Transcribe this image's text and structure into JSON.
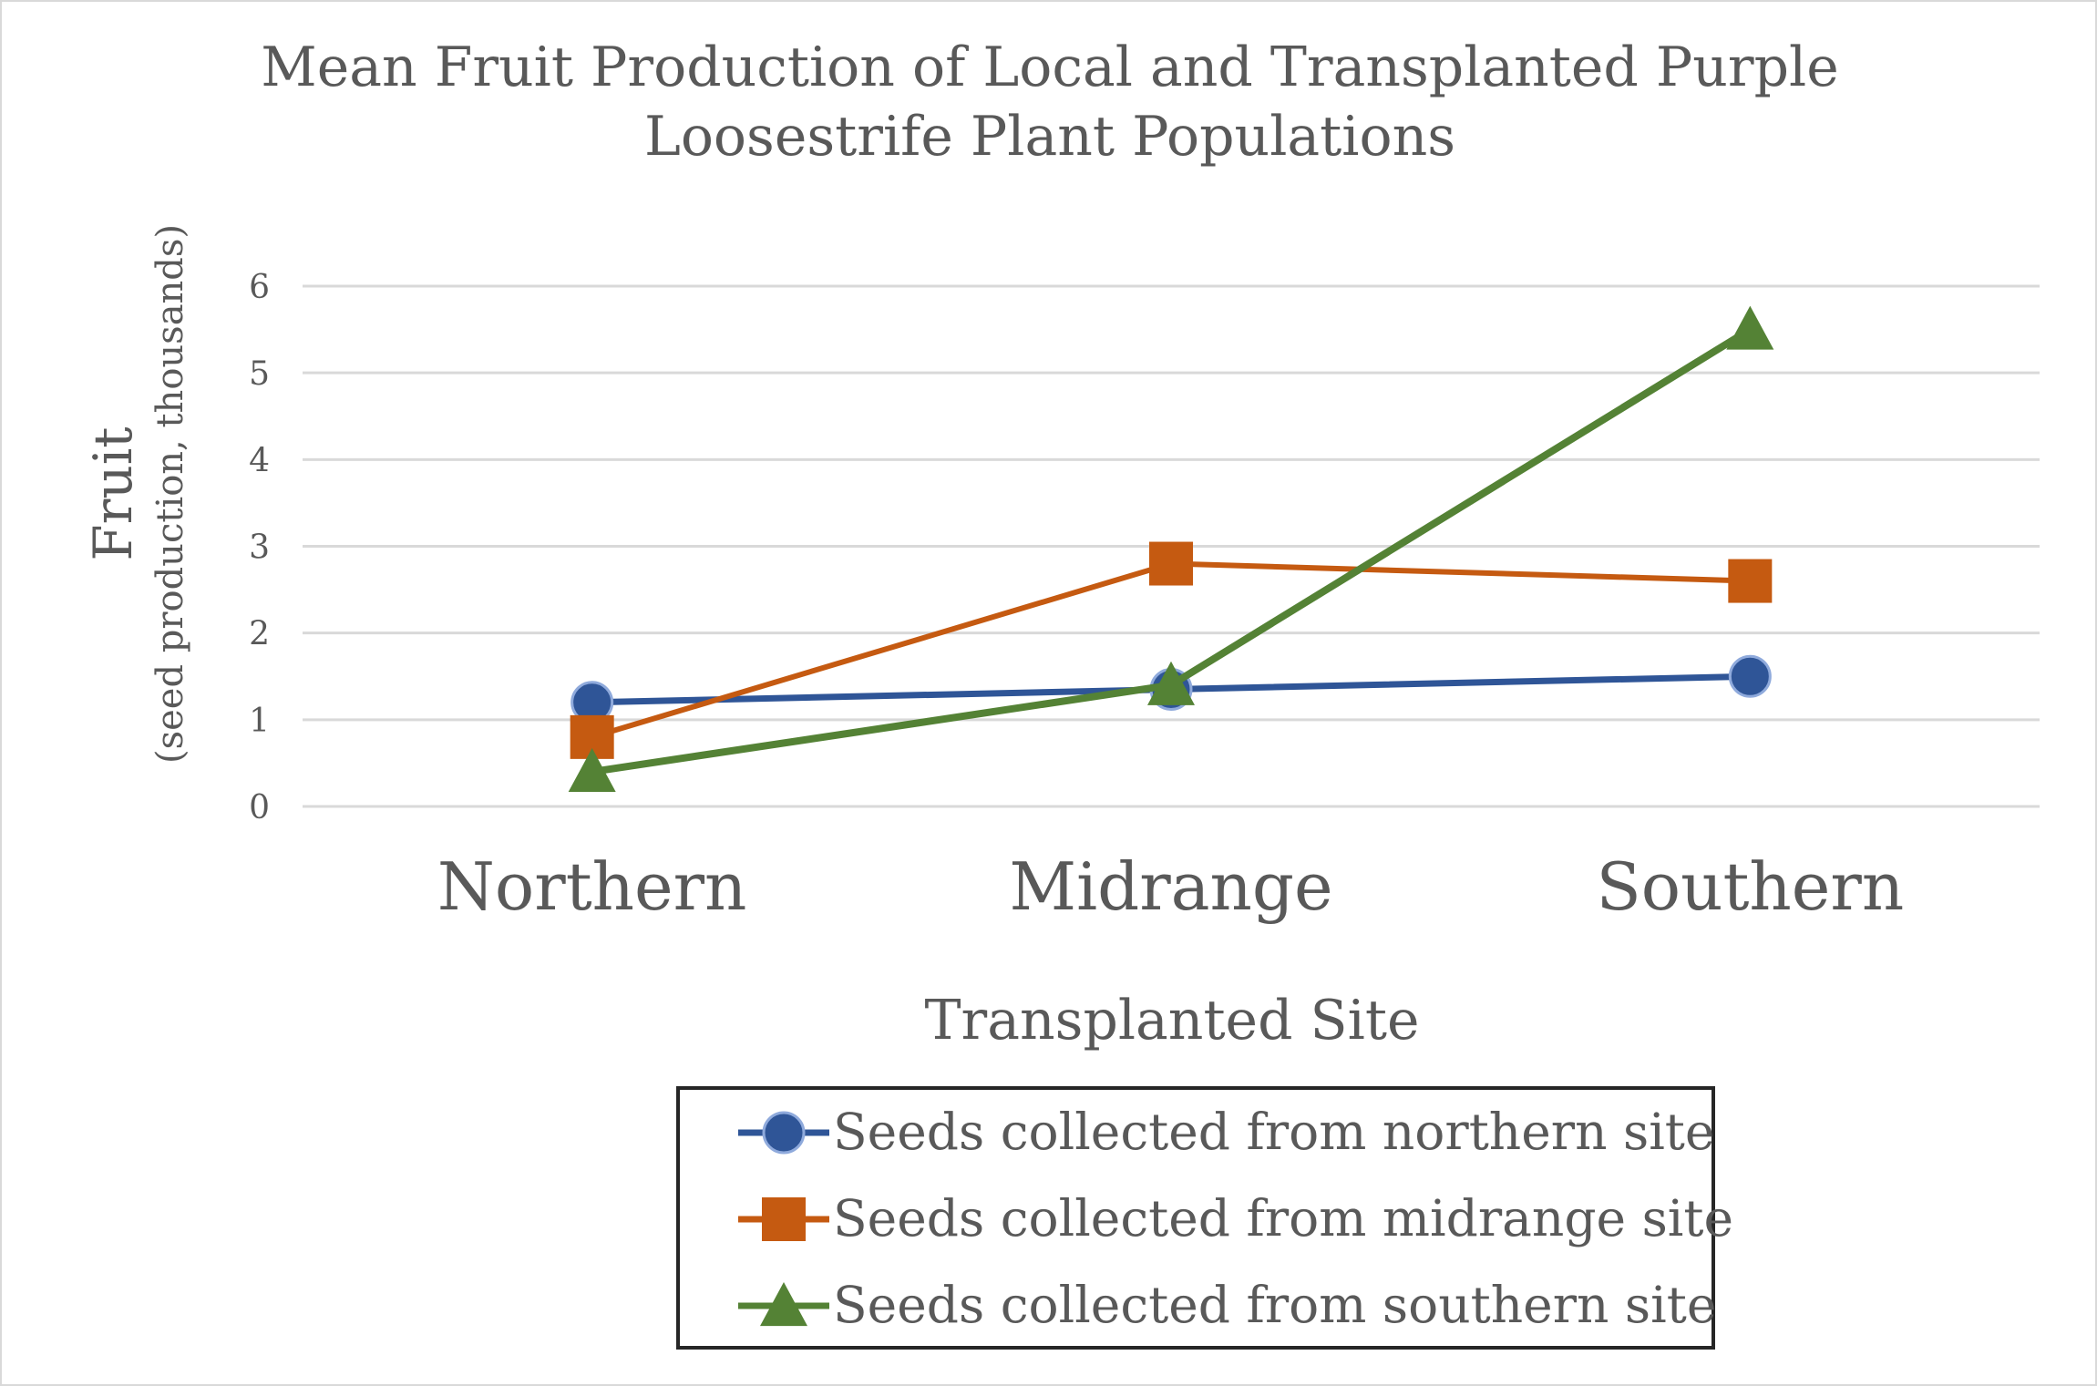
{
  "chart_data": {
    "type": "line",
    "title": [
      "Mean Fruit Production of Local and Transplanted Purple",
      "Loosestrife Plant Populations"
    ],
    "xlabel": "Transplanted Site",
    "ylabel": "Fruit",
    "ylabel_sub": "(seed production, thousands)",
    "categories": [
      "Northern",
      "Midrange",
      "Southern"
    ],
    "ylim": [
      0,
      6
    ],
    "yticks": [
      0,
      1,
      2,
      3,
      4,
      5,
      6
    ],
    "grid": true,
    "legend_position": "bottom",
    "series": [
      {
        "name": "Seeds collected from northern site",
        "values": [
          1.2,
          1.35,
          1.5
        ],
        "color": "#2f5597",
        "marker": "circle"
      },
      {
        "name": "Seeds collected from midrange site",
        "values": [
          0.8,
          2.8,
          2.6
        ],
        "color": "#c55a11",
        "marker": "square"
      },
      {
        "name": "Seeds collected from southern site",
        "values": [
          0.4,
          1.4,
          5.5
        ],
        "color": "#548235",
        "marker": "triangle"
      }
    ]
  }
}
